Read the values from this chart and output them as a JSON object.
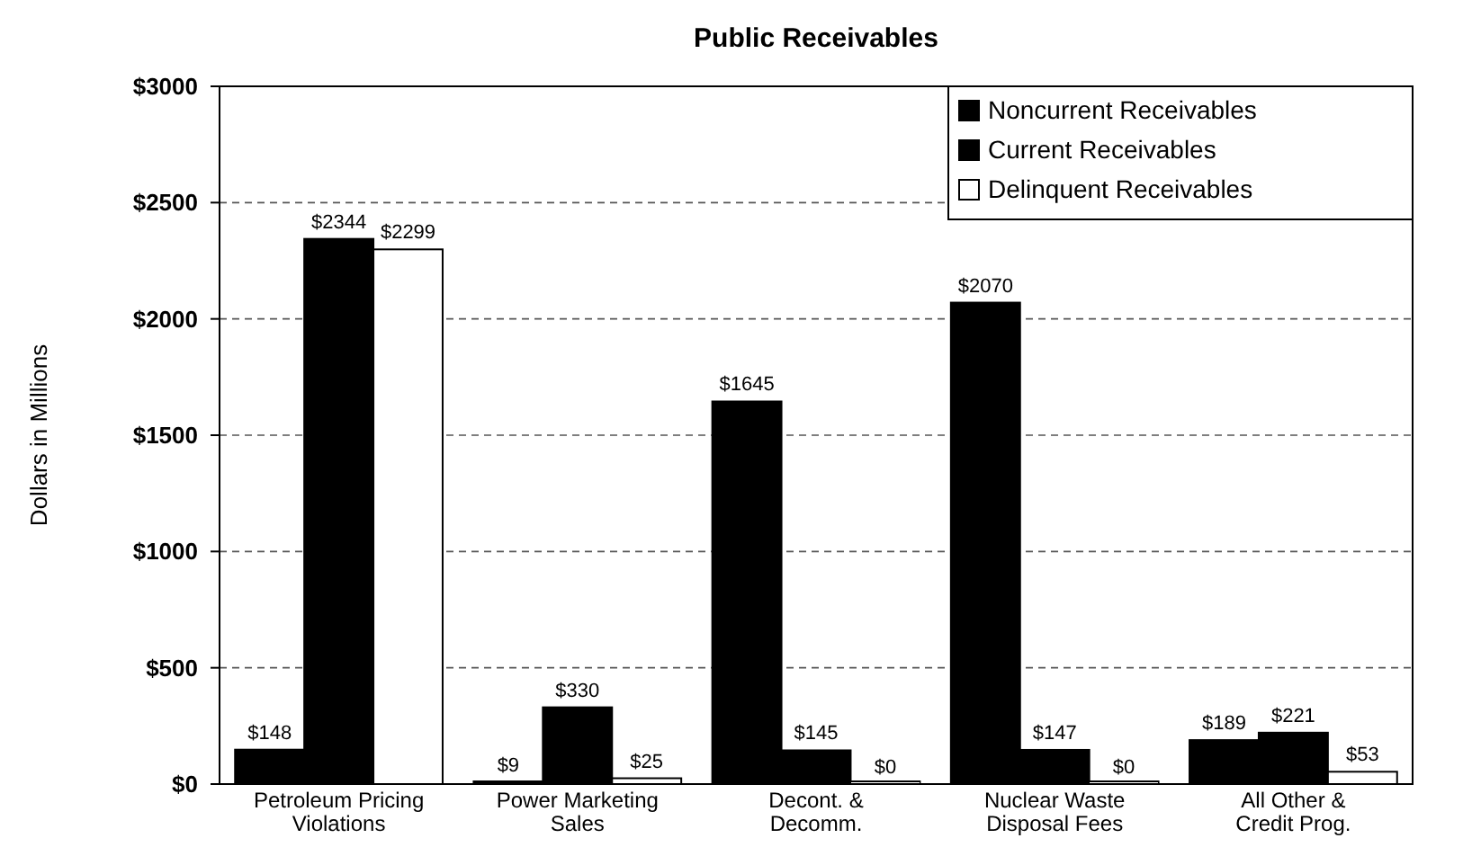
{
  "chart_data": {
    "type": "bar",
    "title": "Public Receivables",
    "ylabel": "Dollars in Millions",
    "categories": [
      "Petroleum Pricing\nViolations",
      "Power Marketing\nSales",
      "Decont. &\nDecomm.",
      "Nuclear Waste\nDisposal Fees",
      "All Other &\nCredit Prog."
    ],
    "series": [
      {
        "name": "Noncurrent Receivables",
        "color": "#000000",
        "values": [
          148,
          9,
          1645,
          2070,
          189
        ],
        "value_labels": [
          "$148",
          "$9",
          "$1645",
          "$2070",
          "$189"
        ]
      },
      {
        "name": "Current Receivables",
        "color": "#000000",
        "values": [
          2344,
          330,
          145,
          147,
          221
        ],
        "value_labels": [
          "$2344",
          "$330",
          "$145",
          "$147",
          "$221"
        ]
      },
      {
        "name": "Delinquent Receivables",
        "color": "#ffffff",
        "values": [
          2299,
          25,
          0,
          0,
          53
        ],
        "value_labels": [
          "$2299",
          "$25",
          "$0",
          "$0",
          "$53"
        ]
      }
    ],
    "ylim": [
      0,
      3000
    ],
    "yticks": [
      {
        "value": 0,
        "label": "$0"
      },
      {
        "value": 500,
        "label": "$500"
      },
      {
        "value": 1000,
        "label": "$1000"
      },
      {
        "value": 1500,
        "label": "$1500"
      },
      {
        "value": 2000,
        "label": "$2000"
      },
      {
        "value": 2500,
        "label": "$2500"
      },
      {
        "value": 3000,
        "label": "$3000"
      }
    ],
    "grid": "y",
    "legend": "top right"
  }
}
